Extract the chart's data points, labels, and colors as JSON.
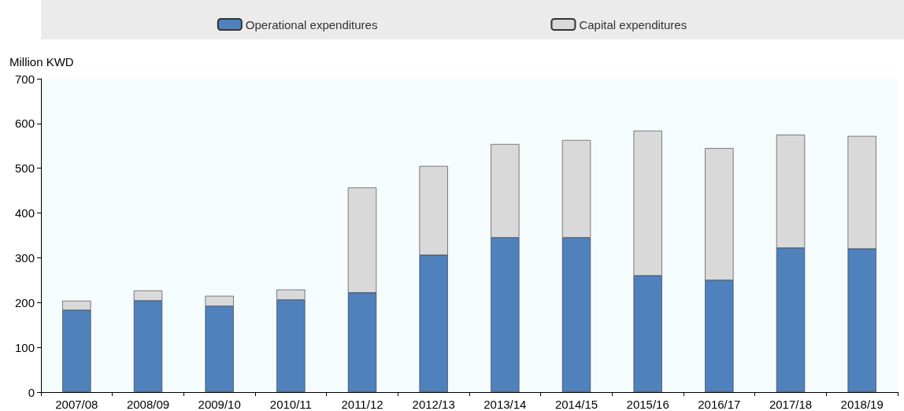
{
  "chart_data": {
    "type": "bar",
    "stacked": true,
    "ylabel": "Million KWD",
    "legend": "top",
    "categories": [
      "2007/08",
      "2008/09",
      "2009/10",
      "2010/11",
      "2011/12",
      "2012/13",
      "2013/14",
      "2014/15",
      "2015/16",
      "2016/17",
      "2017/18",
      "2018/19"
    ],
    "series": [
      {
        "name": "Operational expenditures",
        "color": "#4f81bd",
        "values": [
          183,
          204,
          192,
          206,
          222,
          306,
          345,
          345,
          260,
          250,
          322,
          320
        ]
      },
      {
        "name": "Capital expenditures",
        "color": "#d9d9d9",
        "values": [
          21,
          23,
          23,
          23,
          235,
          199,
          209,
          218,
          324,
          295,
          253,
          252
        ]
      }
    ],
    "ylim": [
      0,
      700
    ],
    "yticks": [
      0,
      100,
      200,
      300,
      400,
      500,
      600,
      700
    ]
  }
}
